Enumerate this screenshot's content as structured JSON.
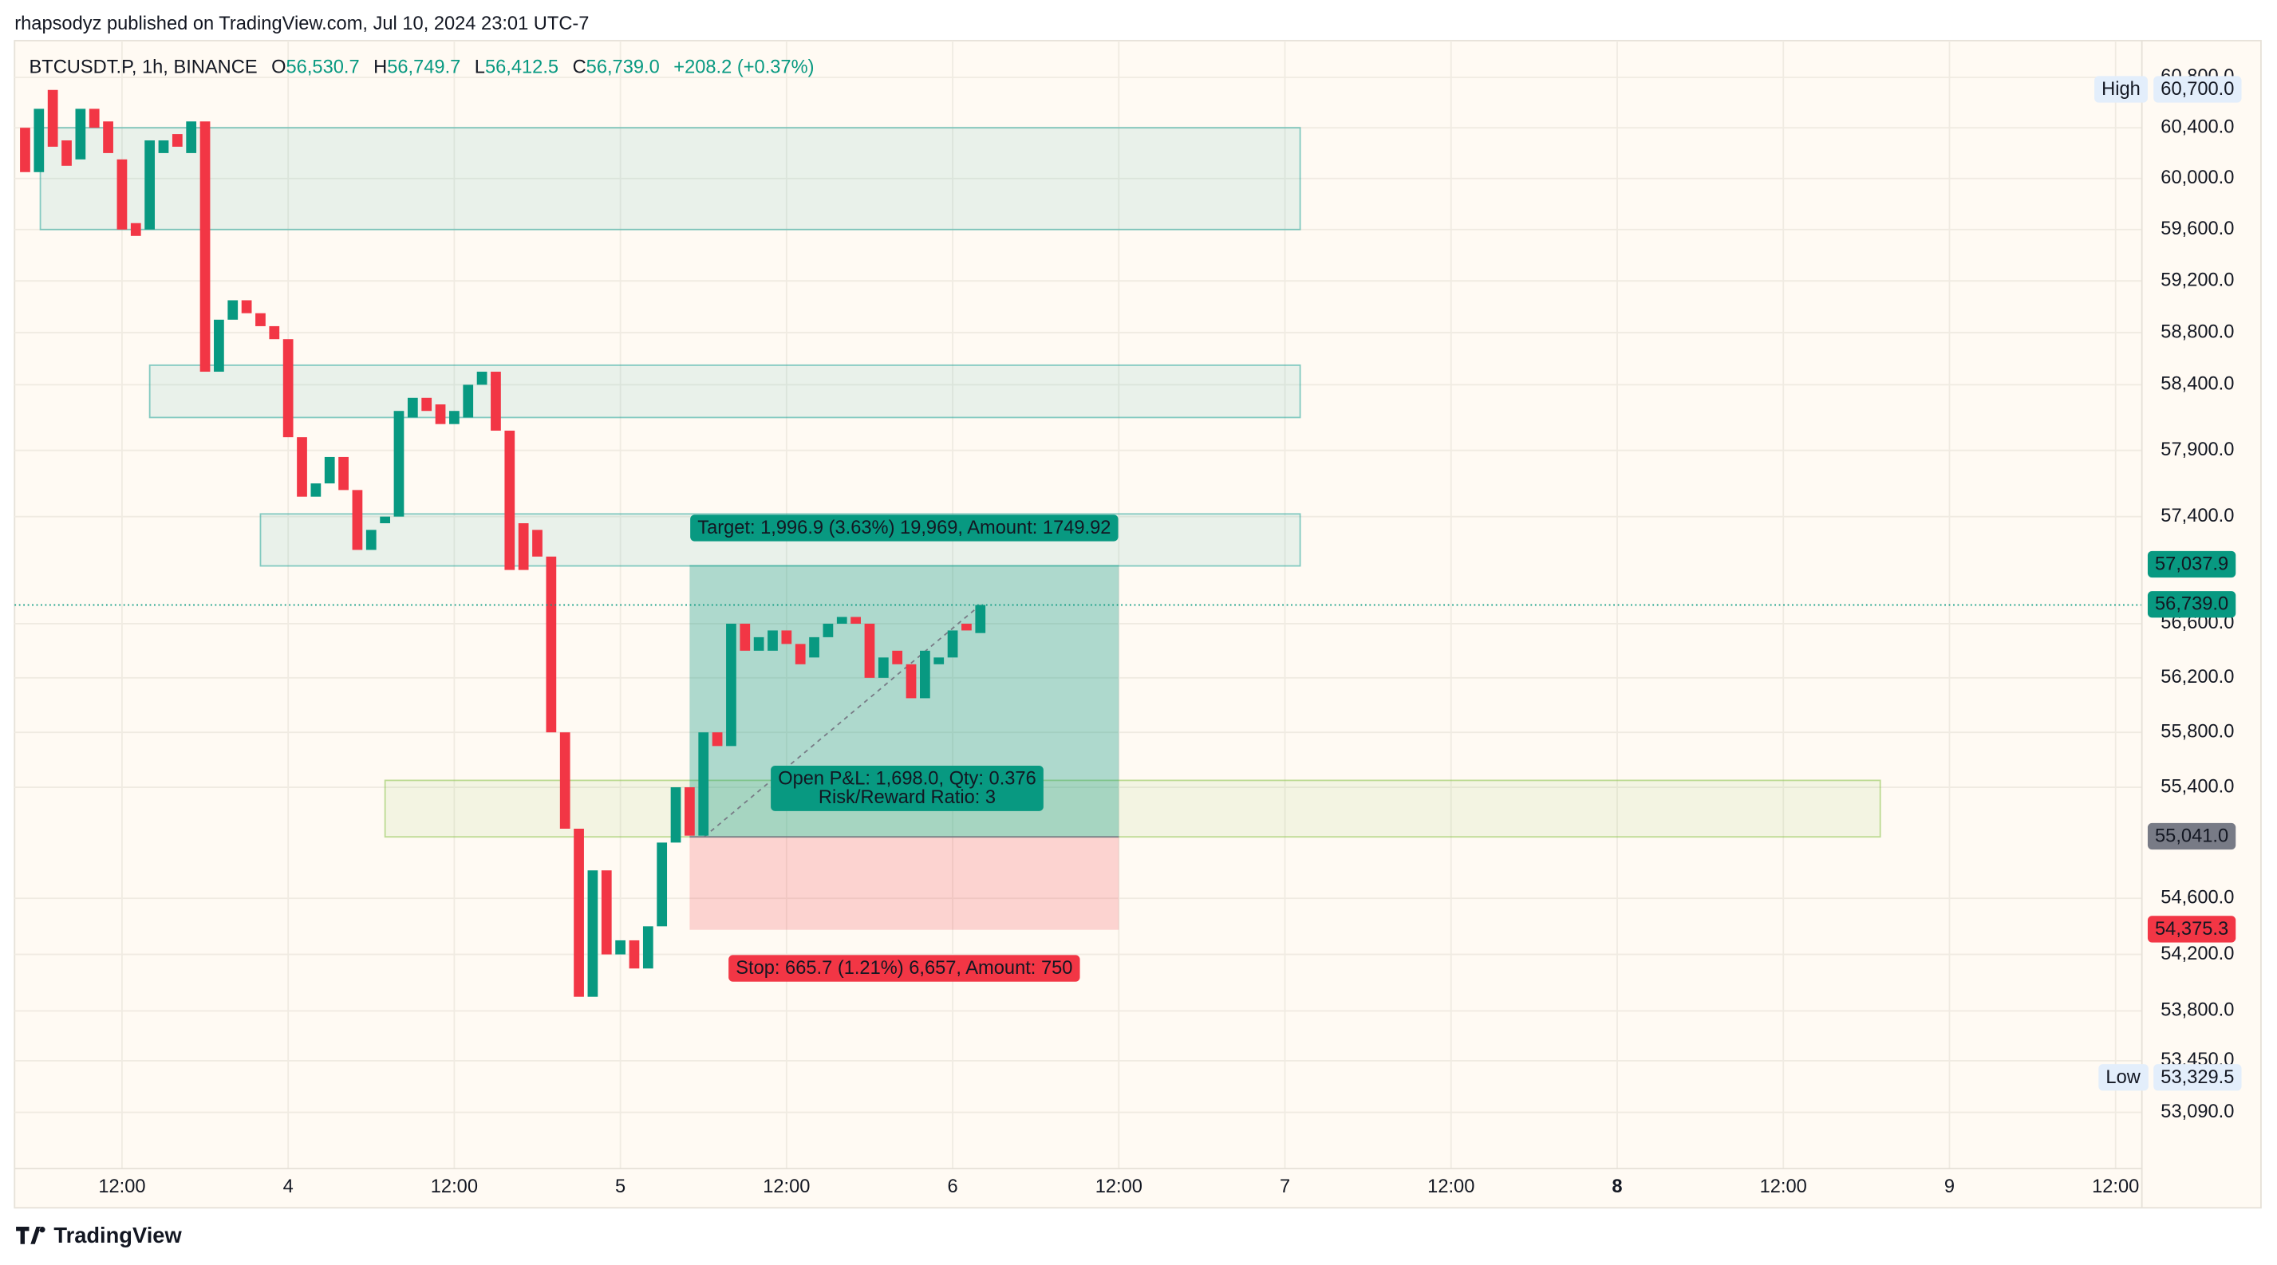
{
  "header": {
    "byline": "rhapsodyz published on TradingView.com, Jul 10, 2024 23:01 UTC-7",
    "symbol": "BTCUSDT.P, 1h, BINANCE",
    "ohlc": [
      {
        "key": "O",
        "value": "56,530.7"
      },
      {
        "key": "H",
        "value": "56,749.7"
      },
      {
        "key": "L",
        "value": "56,412.5"
      },
      {
        "key": "C",
        "value": "56,739.0"
      }
    ],
    "change": "+208.2 (+0.37%)"
  },
  "footer": {
    "brand": "TradingView"
  },
  "chart_data": {
    "type": "candlestick",
    "log_scale": true,
    "grid": true,
    "up_color": "#089981",
    "down_color": "#f23645",
    "x": [
      5,
      6,
      7,
      8,
      9,
      10,
      11,
      12,
      13,
      14,
      15,
      16,
      17,
      18,
      19,
      20,
      21,
      22,
      23,
      24,
      25,
      26,
      27,
      28,
      29,
      30,
      31,
      32,
      33,
      34,
      35,
      36,
      37,
      38,
      39,
      40,
      41,
      42,
      43,
      44,
      45,
      46,
      47,
      48,
      49,
      50,
      51,
      52,
      53,
      54,
      55,
      56,
      57,
      58,
      59,
      60,
      61,
      62,
      63,
      64,
      65,
      66,
      67,
      68,
      69,
      70,
      71,
      72,
      73,
      74
    ],
    "open": [
      60400,
      60050,
      60700,
      60300,
      60150,
      60550,
      60450,
      60150,
      59650,
      59600,
      60200,
      60350,
      60200,
      60450,
      58500,
      58900,
      59050,
      58950,
      58850,
      58750,
      58000,
      57550,
      57650,
      57850,
      57600,
      57150,
      57350,
      57400,
      58150,
      58300,
      58250,
      58100,
      58150,
      58400,
      58500,
      58050,
      57350,
      57300,
      57100,
      55800,
      55100,
      53900,
      54800,
      54200,
      54300,
      54100,
      54400,
      55000,
      55400,
      55050,
      55800,
      55700,
      56600,
      56400,
      56400,
      56550,
      56450,
      56350,
      56500,
      56600,
      56650,
      56600,
      56200,
      56400,
      56300,
      56050,
      56300,
      56350,
      56600,
      56530.7
    ],
    "high": {
      "name": "High",
      "value": 60700.0,
      "label": "60,700.0"
    },
    "low": {
      "name": "Low",
      "value": 53329.5,
      "label": "53,329.5"
    },
    "close": [
      60050,
      60550,
      60250,
      60100,
      60550,
      60400,
      60200,
      59600,
      59550,
      60300,
      60300,
      60250,
      60450,
      58500,
      58900,
      59050,
      58950,
      58850,
      58750,
      58000,
      57550,
      57650,
      57850,
      57600,
      57150,
      57300,
      57400,
      58200,
      58300,
      58200,
      58100,
      58200,
      58400,
      58500,
      58050,
      57000,
      57000,
      57100,
      55800,
      55100,
      53900,
      54800,
      54200,
      54300,
      54100,
      54400,
      55000,
      55400,
      55050,
      55800,
      55700,
      56600,
      56400,
      56500,
      56550,
      56450,
      56300,
      56500,
      56600,
      56650,
      56600,
      56200,
      56350,
      56300,
      56050,
      56400,
      56350,
      56550,
      56550,
      56739.0
    ],
    "xlim": [
      4.24,
      157.9
    ],
    "ylim": [
      52700,
      61070
    ],
    "xticks": [
      {
        "value": 12,
        "label": "12:00"
      },
      {
        "value": 24,
        "label": "4"
      },
      {
        "value": 36,
        "label": "12:00"
      },
      {
        "value": 48,
        "label": "5"
      },
      {
        "value": 60,
        "label": "12:00"
      },
      {
        "value": 72,
        "label": "6"
      },
      {
        "value": 84,
        "label": "12:00"
      },
      {
        "value": 96,
        "label": "7"
      },
      {
        "value": 108,
        "label": "12:00"
      },
      {
        "value": 120,
        "label": "8"
      },
      {
        "value": 132,
        "label": "12:00"
      },
      {
        "value": 144,
        "label": "9"
      },
      {
        "value": 156,
        "label": "12:00"
      }
    ],
    "yticks": [
      {
        "value": 60800,
        "label": "60,800.0"
      },
      {
        "value": 60400,
        "label": "60,400.0"
      },
      {
        "value": 60000,
        "label": "60,000.0"
      },
      {
        "value": 59600,
        "label": "59,600.0"
      },
      {
        "value": 59200,
        "label": "59,200.0"
      },
      {
        "value": 58800,
        "label": "58,800.0"
      },
      {
        "value": 58400,
        "label": "58,400.0"
      },
      {
        "value": 57900,
        "label": "57,900.0"
      },
      {
        "value": 57400,
        "label": "57,400.0"
      },
      {
        "value": 56600,
        "label": "56,600.0"
      },
      {
        "value": 56200,
        "label": "56,200.0"
      },
      {
        "value": 55800,
        "label": "55,800.0"
      },
      {
        "value": 55400,
        "label": "55,400.0"
      },
      {
        "value": 54600,
        "label": "54,600.0"
      },
      {
        "value": 54200,
        "label": "54,200.0"
      },
      {
        "value": 53800,
        "label": "53,800.0"
      },
      {
        "value": 53450,
        "label": "53,450.0"
      },
      {
        "value": 53090,
        "label": "53,090.0"
      }
    ],
    "zones": [
      {
        "from": 60400,
        "to": 59600,
        "start": 6.1,
        "end": 97.1,
        "color": "#26a69a"
      },
      {
        "from": 58550,
        "to": 58150,
        "start": 14,
        "end": 97.1,
        "color": "#26a69a"
      },
      {
        "from": 57420,
        "to": 57030,
        "start": 22,
        "end": 97.1,
        "color": "#26a69a"
      },
      {
        "from": 55450,
        "to": 55041,
        "start": 31,
        "end": 139,
        "color": "#8bc34a"
      }
    ],
    "position": {
      "start": 53,
      "end": 84,
      "entry": 55041.0,
      "target": 57037.9,
      "stop": 54375.3,
      "target_label": "Target: 1,996.9 (3.63%) 19,969, Amount: 1749.92",
      "pnl_label": "Open P&L: 1,698.0, Qty: 0.376",
      "rr_label": "Risk/Reward Ratio: 3",
      "stop_label": "Stop: 665.7 (1.21%) 6,657, Amount: 750"
    },
    "last_price": {
      "value": 56739.0,
      "label": "56,739.0",
      "color": "#089981"
    },
    "price_labels": [
      {
        "value": 57037.9,
        "label": "57,037.9",
        "color": "#089981"
      },
      {
        "value": 55041.0,
        "label": "55,041.0",
        "color": "#787b86"
      },
      {
        "value": 54375.3,
        "label": "54,375.3",
        "color": "#f23645"
      }
    ]
  }
}
